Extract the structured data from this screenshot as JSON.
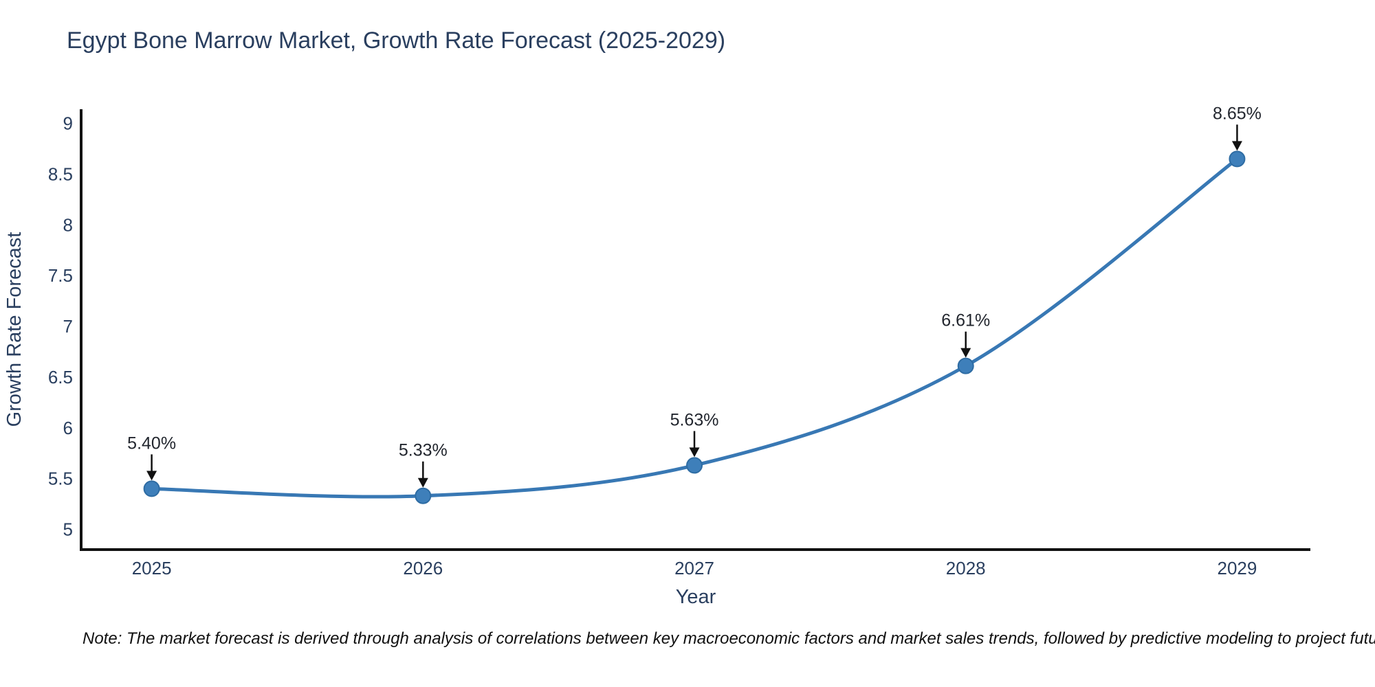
{
  "page": {
    "title": "Egypt Bone Marrow Market, Growth Rate Forecast (2025-2029)",
    "note": "Note: The market forecast is derived through analysis of correlations between key macroeconomic factors and market sales trends, followed by predictive modeling to project future sales"
  },
  "chart_data": {
    "type": "line",
    "title": "Egypt Bone Marrow Market, Growth Rate Forecast (2025-2029)",
    "xlabel": "Year",
    "ylabel": "Growth Rate Forecast",
    "x": [
      2025,
      2026,
      2027,
      2028,
      2029
    ],
    "series": [
      {
        "name": "Growth Rate Forecast",
        "values": [
          5.4,
          5.33,
          5.63,
          6.61,
          8.65
        ],
        "point_labels": [
          "5.40%",
          "5.33%",
          "5.63%",
          "6.61%",
          "8.65%"
        ]
      }
    ],
    "x_tick_labels": [
      "2025",
      "2026",
      "2027",
      "2028",
      "2029"
    ],
    "y_ticks": [
      5,
      5.5,
      6,
      6.5,
      7,
      7.5,
      8,
      8.5,
      9
    ],
    "y_tick_labels": [
      "5",
      "5.5",
      "6",
      "6.5",
      "7",
      "7.5",
      "8",
      "8.5",
      "9"
    ],
    "xlim": [
      2024.74,
      2029.27
    ],
    "ylim": [
      4.8,
      9.14
    ],
    "grid": false,
    "legend": false,
    "line_shape": "spline",
    "annotations_have_arrows": true,
    "colors": {
      "line": "#3878b4",
      "marker_fill": "#3e7fba",
      "marker_edge": "#2e6ca3",
      "axis_line": "#111111",
      "tick_text": "#2a3f5f",
      "title_text": "#2a3f5f",
      "annotation_text": "#22262e",
      "arrow": "#111111",
      "note_text": "#111111",
      "background": "#ffffff"
    }
  }
}
